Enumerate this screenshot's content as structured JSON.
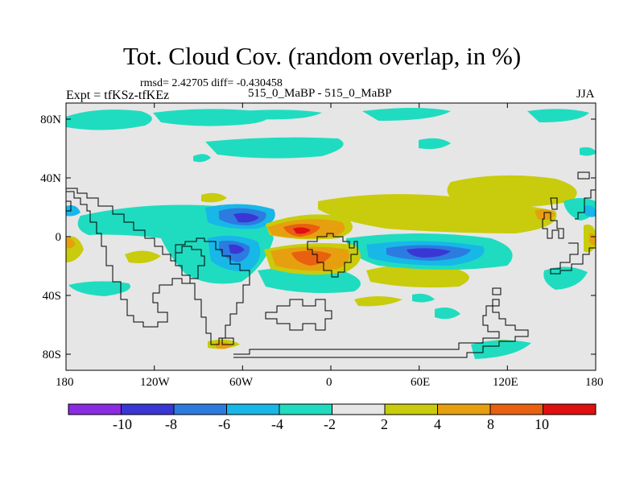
{
  "map": {
    "title": "Tot. Cloud Cov. (random overlap, in %)",
    "stats_line": "rmsd= 2.42705  diff= -0.430458",
    "experiment_label": "Expt = tfKSz-tfKEz",
    "comparison_label": "515_0_MaBP - 515_0_MaBP",
    "season": "JJA",
    "x_tick_labels": [
      "180",
      "120W",
      "60W",
      "0",
      "60E",
      "120E",
      "180"
    ],
    "y_tick_labels": [
      "80N",
      "40N",
      "0",
      "40S",
      "80S"
    ],
    "background_color": "#e6e6e6"
  },
  "colorbar": {
    "labels": [
      "-10",
      "-8",
      "-6",
      "-4",
      "-2",
      "2",
      "4",
      "8",
      "10"
    ],
    "colors": [
      "#8a2be2",
      "#3a36d4",
      "#2c7be0",
      "#17b7e8",
      "#1fdcc0",
      "#e6e6e6",
      "#c8cc0c",
      "#e6a00f",
      "#e86010",
      "#e01010"
    ]
  }
}
